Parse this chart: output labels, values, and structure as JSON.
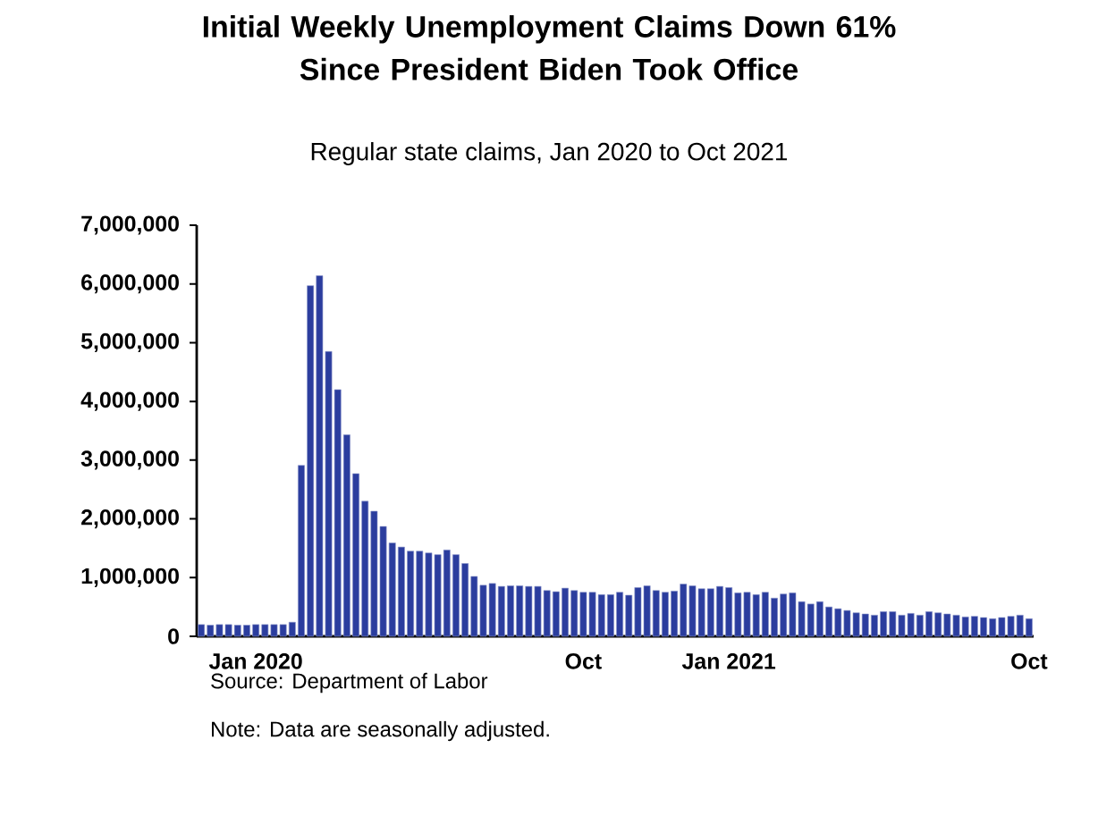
{
  "chart_data": {
    "type": "bar",
    "title": "Initial Weekly Unemployment Claims Down 61%\nSince President Biden Took Office",
    "subtitle": "Regular state claims, Jan 2020 to Oct 2021",
    "annotations": [
      "Source: Department of Labor",
      "Note: Data are seasonally adjusted."
    ],
    "categories": [
      null,
      null,
      null,
      null,
      null,
      null,
      "Jan 2020",
      null,
      null,
      null,
      null,
      null,
      null,
      null,
      null,
      null,
      null,
      null,
      null,
      null,
      null,
      null,
      null,
      null,
      null,
      null,
      null,
      null,
      null,
      null,
      null,
      null,
      null,
      null,
      null,
      null,
      null,
      null,
      null,
      null,
      null,
      null,
      "Oct",
      null,
      null,
      null,
      null,
      null,
      null,
      null,
      null,
      null,
      null,
      null,
      null,
      null,
      null,
      null,
      "Jan 2021",
      null,
      null,
      null,
      null,
      null,
      null,
      null,
      null,
      null,
      null,
      null,
      null,
      null,
      null,
      null,
      null,
      null,
      null,
      null,
      null,
      null,
      null,
      null,
      null,
      null,
      null,
      null,
      null,
      null,
      null,
      null,
      null,
      "Oct"
    ],
    "values": [
      200000,
      190000,
      200000,
      200000,
      190000,
      190000,
      200000,
      200000,
      200000,
      200000,
      240000,
      2910000,
      5970000,
      6140000,
      4850000,
      4200000,
      3430000,
      2770000,
      2300000,
      2130000,
      1870000,
      1590000,
      1520000,
      1450000,
      1450000,
      1420000,
      1390000,
      1470000,
      1390000,
      1240000,
      1020000,
      870000,
      900000,
      850000,
      860000,
      860000,
      850000,
      850000,
      780000,
      760000,
      820000,
      780000,
      750000,
      750000,
      710000,
      710000,
      750000,
      700000,
      830000,
      860000,
      780000,
      750000,
      770000,
      890000,
      860000,
      810000,
      810000,
      850000,
      830000,
      740000,
      750000,
      710000,
      750000,
      650000,
      720000,
      740000,
      590000,
      550000,
      590000,
      500000,
      470000,
      440000,
      400000,
      380000,
      360000,
      420000,
      420000,
      360000,
      390000,
      360000,
      420000,
      400000,
      380000,
      360000,
      330000,
      340000,
      320000,
      300000,
      320000,
      340000,
      360000,
      300000
    ],
    "color": "#2b3d9e",
    "ylim": [
      0,
      7000000
    ],
    "yticks": [
      {
        "value": 0,
        "label": "0"
      },
      {
        "value": 1000000,
        "label": "1,000,000"
      },
      {
        "value": 2000000,
        "label": "2,000,000"
      },
      {
        "value": 3000000,
        "label": "3,000,000"
      },
      {
        "value": 4000000,
        "label": "4,000,000"
      },
      {
        "value": 5000000,
        "label": "5,000,000"
      },
      {
        "value": 6000000,
        "label": "6,000,000"
      },
      {
        "value": 7000000,
        "label": "7,000,000"
      }
    ],
    "grid": false
  }
}
